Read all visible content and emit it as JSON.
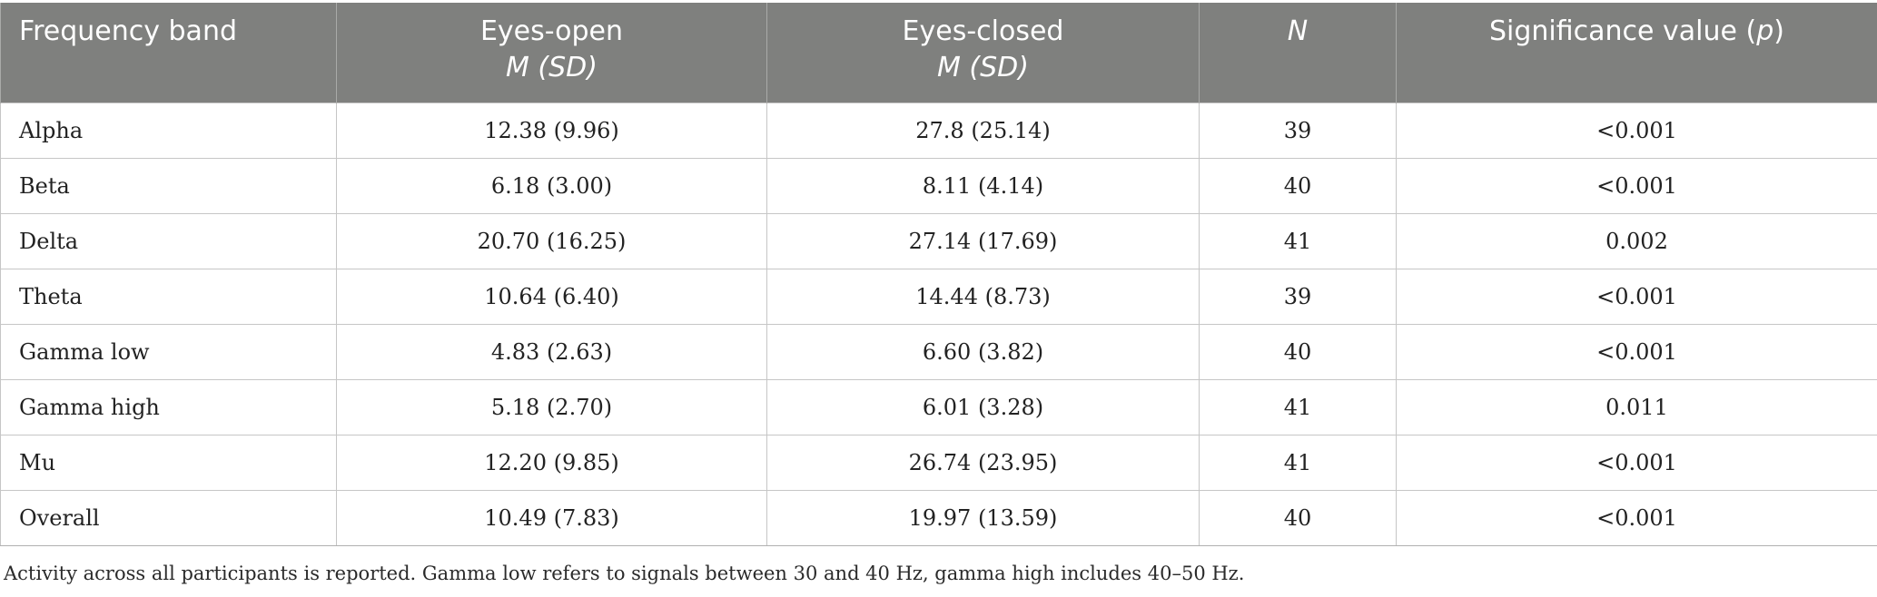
{
  "table": {
    "headers": {
      "band": "Frequency band",
      "eyes_open": "Eyes-open",
      "eyes_open_sub": "M (SD)",
      "eyes_closed": "Eyes-closed",
      "eyes_closed_sub": "M (SD)",
      "n": "N",
      "sig_prefix": "Significance value (",
      "sig_p": "p",
      "sig_suffix": ")"
    },
    "rows": [
      {
        "band": "Alpha",
        "open": "12.38 (9.96)",
        "closed": "27.8 (25.14)",
        "n": "39",
        "p": "<0.001"
      },
      {
        "band": "Beta",
        "open": "6.18 (3.00)",
        "closed": "8.11 (4.14)",
        "n": "40",
        "p": "<0.001"
      },
      {
        "band": "Delta",
        "open": "20.70 (16.25)",
        "closed": "27.14 (17.69)",
        "n": "41",
        "p": "0.002"
      },
      {
        "band": "Theta",
        "open": "10.64 (6.40)",
        "closed": "14.44 (8.73)",
        "n": "39",
        "p": "<0.001"
      },
      {
        "band": "Gamma low",
        "open": "4.83 (2.63)",
        "closed": "6.60 (3.82)",
        "n": "40",
        "p": "<0.001"
      },
      {
        "band": "Gamma high",
        "open": "5.18 (2.70)",
        "closed": "6.01 (3.28)",
        "n": "41",
        "p": "0.011"
      },
      {
        "band": "Mu",
        "open": "12.20 (9.85)",
        "closed": "26.74 (23.95)",
        "n": "41",
        "p": "<0.001"
      },
      {
        "band": "Overall",
        "open": "10.49 (7.83)",
        "closed": "19.97 (13.59)",
        "n": "40",
        "p": "<0.001"
      }
    ]
  },
  "footnote": "Activity across all participants is reported. Gamma low refers to signals between 30 and 40 Hz, gamma high includes 40–50 Hz."
}
